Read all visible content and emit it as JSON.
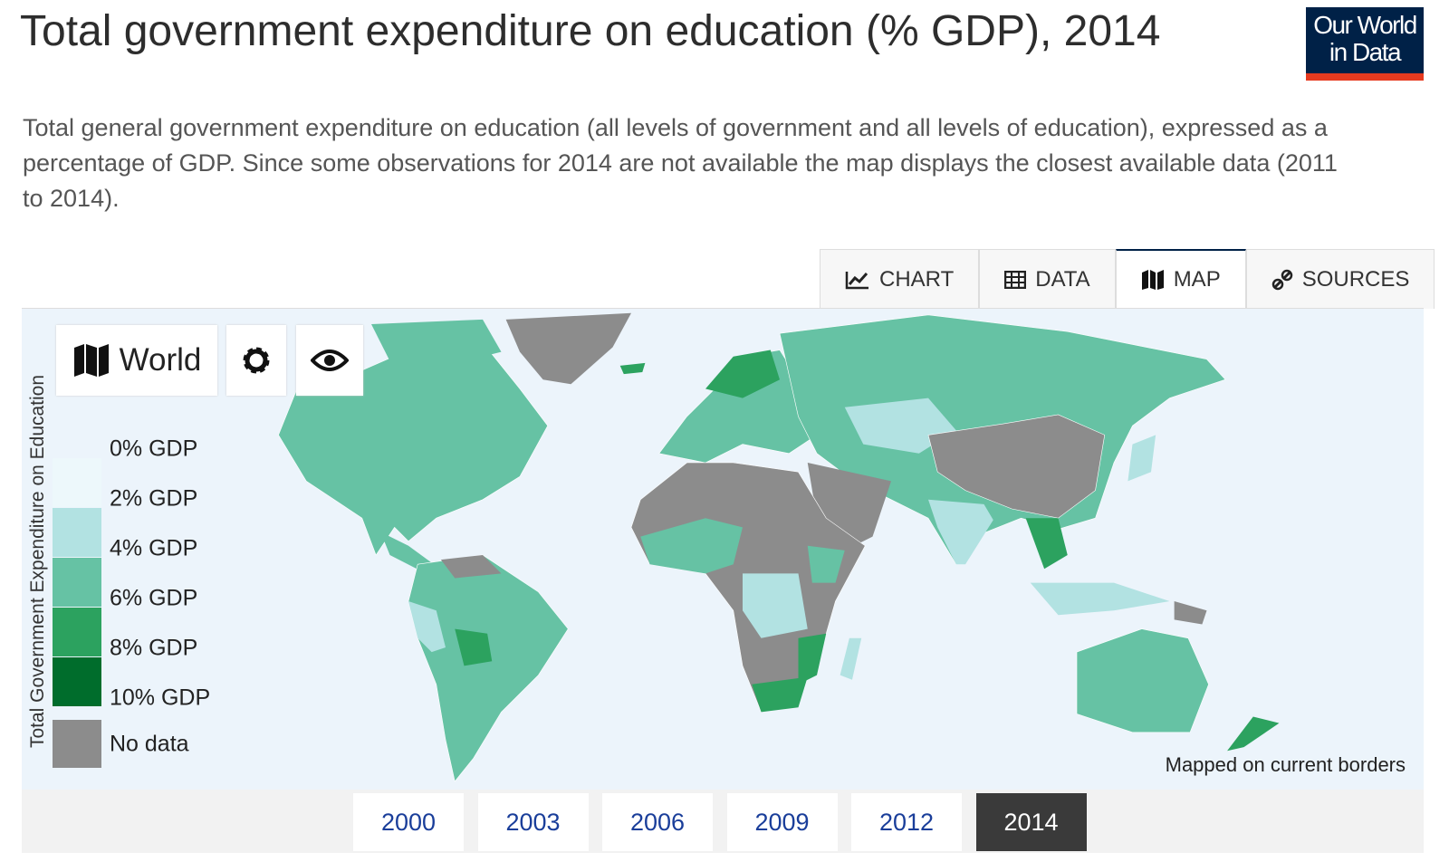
{
  "header": {
    "title": "Total government expenditure on education (% GDP), 2014",
    "subtitle": "Total general government expenditure on education (all levels of government and all levels of education), expressed as a percentage of GDP. Since some observations for 2014 are not available the map displays the closest available data (2011 to 2014).",
    "logo": [
      "Our World",
      "in Data"
    ]
  },
  "tabs": {
    "items": [
      "CHART",
      "DATA",
      "MAP",
      "SOURCES"
    ],
    "selected": "MAP"
  },
  "controls": {
    "region": "World"
  },
  "legend": {
    "title": "Total Government Expenditure on Education",
    "bounds": [
      "0% GDP",
      "2% GDP",
      "4% GDP",
      "6% GDP",
      "8% GDP",
      "10% GDP"
    ],
    "colors": [
      "#edf8fb",
      "#b2e2e2",
      "#66c2a4",
      "#2ca25f",
      "#006d2c"
    ],
    "no_data": {
      "label": "No data",
      "color": "#8c8c8c"
    }
  },
  "note": "Mapped on current borders",
  "timeline": {
    "years": [
      "2000",
      "2003",
      "2006",
      "2009",
      "2012",
      "2014"
    ],
    "selected": "2014"
  }
}
